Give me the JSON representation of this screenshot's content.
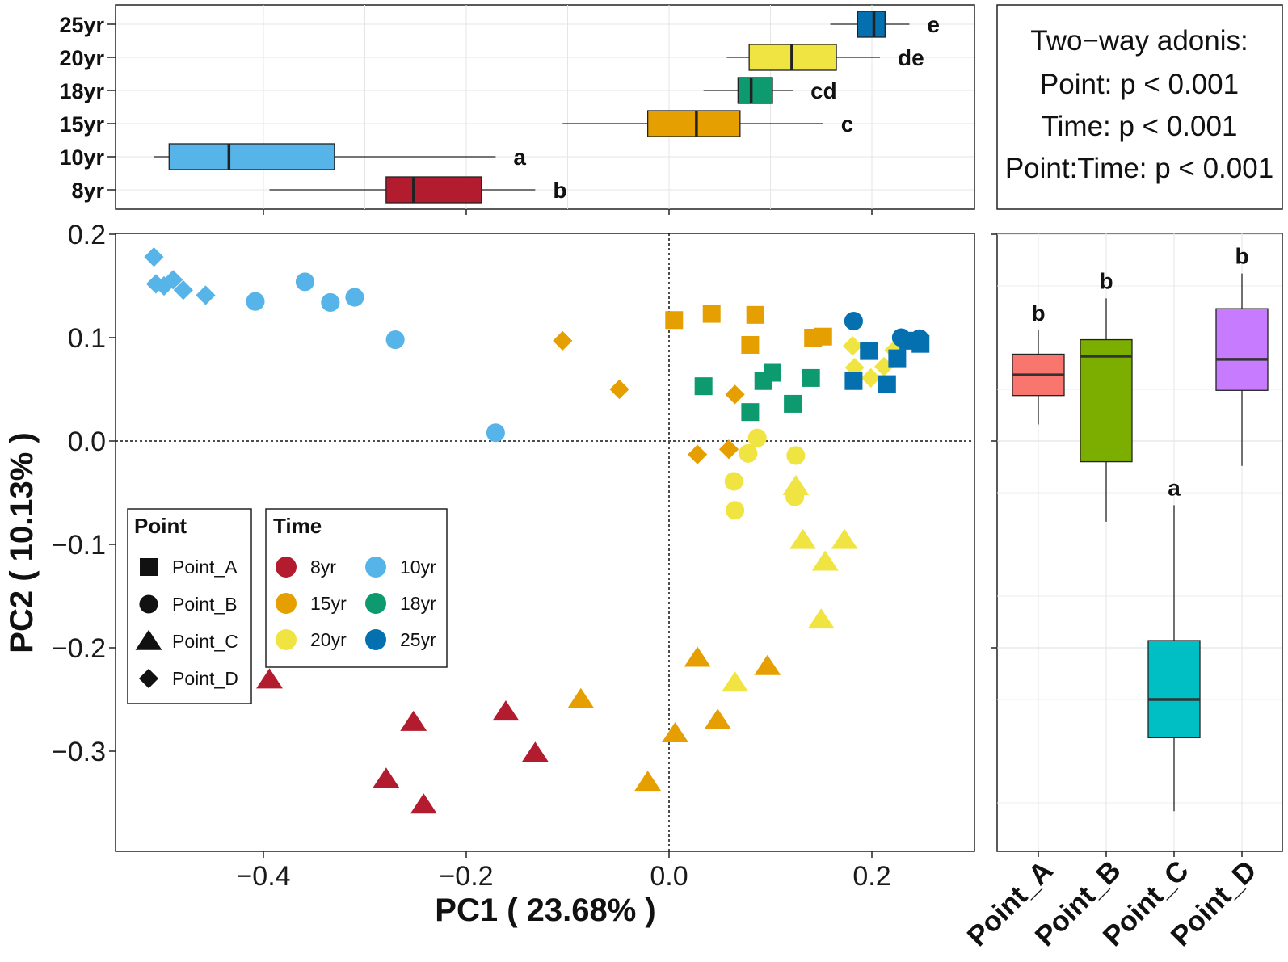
{
  "chart_data": [
    {
      "type": "scatter",
      "name": "PCoA",
      "xlabel": "PC1 ( 23.68% )",
      "ylabel": "PC2 ( 10.13% )",
      "xlim": [
        -0.55,
        0.28
      ],
      "ylim": [
        -0.385,
        0.205
      ],
      "xticks": [
        -0.4,
        -0.2,
        0.0,
        0.2
      ],
      "xtick_labels": [
        "−0.4",
        "−0.2",
        "0.0",
        "0.2"
      ],
      "yticks": [
        0.2,
        0.1,
        0.0,
        -0.1,
        -0.2,
        -0.3
      ],
      "ytick_labels": [
        "0.2",
        "0.1",
        "0.0",
        "−0.1",
        "−0.2",
        "−0.3"
      ],
      "reference_lines": {
        "x": 0.0,
        "y": 0.0,
        "style": "dotted"
      },
      "grid": false,
      "points": [
        {
          "point": "Point_D",
          "time": "10yr",
          "x": -0.508,
          "y": 0.178
        },
        {
          "point": "Point_D",
          "time": "10yr",
          "x": -0.506,
          "y": 0.152
        },
        {
          "point": "Point_D",
          "time": "10yr",
          "x": -0.498,
          "y": 0.15
        },
        {
          "point": "Point_D",
          "time": "10yr",
          "x": -0.489,
          "y": 0.156
        },
        {
          "point": "Point_D",
          "time": "10yr",
          "x": -0.479,
          "y": 0.146
        },
        {
          "point": "Point_D",
          "time": "10yr",
          "x": -0.457,
          "y": 0.141
        },
        {
          "point": "Point_B",
          "time": "10yr",
          "x": -0.408,
          "y": 0.135
        },
        {
          "point": "Point_B",
          "time": "10yr",
          "x": -0.359,
          "y": 0.154
        },
        {
          "point": "Point_B",
          "time": "10yr",
          "x": -0.334,
          "y": 0.134
        },
        {
          "point": "Point_B",
          "time": "10yr",
          "x": -0.31,
          "y": 0.139
        },
        {
          "point": "Point_B",
          "time": "10yr",
          "x": -0.27,
          "y": 0.098
        },
        {
          "point": "Point_B",
          "time": "10yr",
          "x": -0.171,
          "y": 0.008
        },
        {
          "point": "Point_C",
          "time": "8yr",
          "x": -0.394,
          "y": -0.231
        },
        {
          "point": "Point_C",
          "time": "8yr",
          "x": -0.252,
          "y": -0.272
        },
        {
          "point": "Point_C",
          "time": "8yr",
          "x": -0.161,
          "y": -0.262
        },
        {
          "point": "Point_C",
          "time": "8yr",
          "x": -0.132,
          "y": -0.302
        },
        {
          "point": "Point_C",
          "time": "8yr",
          "x": -0.279,
          "y": -0.327
        },
        {
          "point": "Point_C",
          "time": "8yr",
          "x": -0.242,
          "y": -0.352
        },
        {
          "point": "Point_D",
          "time": "15yr",
          "x": -0.105,
          "y": 0.097
        },
        {
          "point": "Point_D",
          "time": "15yr",
          "x": -0.049,
          "y": 0.05
        },
        {
          "point": "Point_D",
          "time": "15yr",
          "x": 0.028,
          "y": -0.013
        },
        {
          "point": "Point_D",
          "time": "15yr",
          "x": 0.059,
          "y": -0.008
        },
        {
          "point": "Point_D",
          "time": "15yr",
          "x": 0.065,
          "y": 0.045
        },
        {
          "point": "Point_A",
          "time": "15yr",
          "x": 0.005,
          "y": 0.117
        },
        {
          "point": "Point_A",
          "time": "15yr",
          "x": 0.042,
          "y": 0.123
        },
        {
          "point": "Point_A",
          "time": "15yr",
          "x": 0.085,
          "y": 0.122
        },
        {
          "point": "Point_A",
          "time": "15yr",
          "x": 0.08,
          "y": 0.093
        },
        {
          "point": "Point_A",
          "time": "15yr",
          "x": 0.142,
          "y": 0.1
        },
        {
          "point": "Point_A",
          "time": "15yr",
          "x": 0.152,
          "y": 0.101
        },
        {
          "point": "Point_C",
          "time": "15yr",
          "x": -0.087,
          "y": -0.25
        },
        {
          "point": "Point_C",
          "time": "15yr",
          "x": 0.028,
          "y": -0.21
        },
        {
          "point": "Point_C",
          "time": "15yr",
          "x": 0.097,
          "y": -0.218
        },
        {
          "point": "Point_C",
          "time": "15yr",
          "x": 0.048,
          "y": -0.27
        },
        {
          "point": "Point_C",
          "time": "15yr",
          "x": 0.006,
          "y": -0.283
        },
        {
          "point": "Point_C",
          "time": "15yr",
          "x": -0.021,
          "y": -0.33
        },
        {
          "point": "Point_A",
          "time": "18yr",
          "x": 0.034,
          "y": 0.053
        },
        {
          "point": "Point_A",
          "time": "18yr",
          "x": 0.093,
          "y": 0.058
        },
        {
          "point": "Point_A",
          "time": "18yr",
          "x": 0.102,
          "y": 0.066
        },
        {
          "point": "Point_A",
          "time": "18yr",
          "x": 0.08,
          "y": 0.028
        },
        {
          "point": "Point_A",
          "time": "18yr",
          "x": 0.122,
          "y": 0.036
        },
        {
          "point": "Point_A",
          "time": "18yr",
          "x": 0.14,
          "y": 0.061
        },
        {
          "point": "Point_B",
          "time": "20yr",
          "x": 0.087,
          "y": 0.003
        },
        {
          "point": "Point_B",
          "time": "20yr",
          "x": 0.078,
          "y": -0.012
        },
        {
          "point": "Point_B",
          "time": "20yr",
          "x": 0.125,
          "y": -0.014
        },
        {
          "point": "Point_B",
          "time": "20yr",
          "x": 0.064,
          "y": -0.039
        },
        {
          "point": "Point_B",
          "time": "20yr",
          "x": 0.124,
          "y": -0.054
        },
        {
          "point": "Point_B",
          "time": "20yr",
          "x": 0.065,
          "y": -0.067
        },
        {
          "point": "Point_C",
          "time": "20yr",
          "x": 0.125,
          "y": -0.044
        },
        {
          "point": "Point_C",
          "time": "20yr",
          "x": 0.132,
          "y": -0.096
        },
        {
          "point": "Point_C",
          "time": "20yr",
          "x": 0.173,
          "y": -0.096
        },
        {
          "point": "Point_C",
          "time": "20yr",
          "x": 0.154,
          "y": -0.117
        },
        {
          "point": "Point_C",
          "time": "20yr",
          "x": 0.15,
          "y": -0.173
        },
        {
          "point": "Point_C",
          "time": "20yr",
          "x": 0.065,
          "y": -0.234
        },
        {
          "point": "Point_D",
          "time": "20yr",
          "x": 0.181,
          "y": 0.092
        },
        {
          "point": "Point_D",
          "time": "20yr",
          "x": 0.183,
          "y": 0.071
        },
        {
          "point": "Point_D",
          "time": "20yr",
          "x": 0.199,
          "y": 0.061
        },
        {
          "point": "Point_D",
          "time": "20yr",
          "x": 0.212,
          "y": 0.072
        },
        {
          "point": "Point_D",
          "time": "20yr",
          "x": 0.222,
          "y": 0.088
        },
        {
          "point": "Point_D",
          "time": "20yr",
          "x": 0.229,
          "y": 0.093
        },
        {
          "point": "Point_A",
          "time": "25yr",
          "x": 0.182,
          "y": 0.058
        },
        {
          "point": "Point_A",
          "time": "25yr",
          "x": 0.197,
          "y": 0.087
        },
        {
          "point": "Point_A",
          "time": "25yr",
          "x": 0.215,
          "y": 0.055
        },
        {
          "point": "Point_A",
          "time": "25yr",
          "x": 0.225,
          "y": 0.08
        },
        {
          "point": "Point_A",
          "time": "25yr",
          "x": 0.236,
          "y": 0.097
        },
        {
          "point": "Point_A",
          "time": "25yr",
          "x": 0.248,
          "y": 0.094
        },
        {
          "point": "Point_B",
          "time": "25yr",
          "x": 0.182,
          "y": 0.116
        },
        {
          "point": "Point_B",
          "time": "25yr",
          "x": 0.229,
          "y": 0.1
        },
        {
          "point": "Point_B",
          "time": "25yr",
          "x": 0.247,
          "y": 0.099
        }
      ],
      "legend_point": {
        "title": "Point",
        "entries": [
          {
            "label": "Point_A",
            "shape": "square"
          },
          {
            "label": "Point_B",
            "shape": "circle"
          },
          {
            "label": "Point_C",
            "shape": "triangle"
          },
          {
            "label": "Point_D",
            "shape": "diamond"
          }
        ]
      },
      "legend_time": {
        "title": "Time",
        "entries": [
          {
            "label": "8yr",
            "color": "#B31B2E"
          },
          {
            "label": "10yr",
            "color": "#56B4E9"
          },
          {
            "label": "15yr",
            "color": "#E69F00"
          },
          {
            "label": "18yr",
            "color": "#0D9A6E"
          },
          {
            "label": "20yr",
            "color": "#F0E442"
          },
          {
            "label": "25yr",
            "color": "#0570B0"
          }
        ]
      }
    },
    {
      "type": "boxplot",
      "name": "PC1 by Time",
      "orientation": "horizontal",
      "axis": "PC1",
      "xlim": [
        -0.55,
        0.28
      ],
      "categories": [
        "25yr",
        "20yr",
        "18yr",
        "15yr",
        "10yr",
        "8yr"
      ],
      "boxes": [
        {
          "label": "25yr",
          "whisker_low": 0.159,
          "q1": 0.186,
          "median": 0.202,
          "q3": 0.213,
          "whisker_high": 0.237,
          "letter": "e",
          "color": "#0570B0"
        },
        {
          "label": "20yr",
          "whisker_low": 0.057,
          "q1": 0.079,
          "median": 0.121,
          "q3": 0.165,
          "whisker_high": 0.208,
          "letter": "de",
          "color": "#F0E442"
        },
        {
          "label": "18yr",
          "whisker_low": 0.034,
          "q1": 0.068,
          "median": 0.081,
          "q3": 0.102,
          "whisker_high": 0.122,
          "letter": "cd",
          "color": "#0D9A6E"
        },
        {
          "label": "15yr",
          "whisker_low": -0.105,
          "q1": -0.021,
          "median": 0.027,
          "q3": 0.07,
          "whisker_high": 0.152,
          "letter": "c",
          "color": "#E69F00"
        },
        {
          "label": "10yr",
          "whisker_low": -0.508,
          "q1": -0.493,
          "median": -0.434,
          "q3": -0.33,
          "whisker_high": -0.171,
          "letter": "a",
          "color": "#56B4E9"
        },
        {
          "label": "8yr",
          "whisker_low": -0.394,
          "q1": -0.279,
          "median": -0.252,
          "q3": -0.185,
          "whisker_high": -0.132,
          "letter": "b",
          "color": "#B31B2E"
        }
      ]
    },
    {
      "type": "boxplot",
      "name": "PC2 by Point",
      "orientation": "vertical",
      "axis": "PC2",
      "ylim": [
        -0.385,
        0.205
      ],
      "categories": [
        "Point_A",
        "Point_B",
        "Point_C",
        "Point_D"
      ],
      "boxes": [
        {
          "label": "Point_A",
          "whisker_low": 0.016,
          "q1": 0.044,
          "median": 0.064,
          "q3": 0.084,
          "whisker_high": 0.107,
          "letter": "b",
          "color": "#F8766D"
        },
        {
          "label": "Point_B",
          "whisker_low": -0.078,
          "q1": -0.02,
          "median": 0.082,
          "q3": 0.098,
          "whisker_high": 0.138,
          "letter": "b",
          "color": "#7CAE00"
        },
        {
          "label": "Point_C",
          "whisker_low": -0.358,
          "q1": -0.287,
          "median": -0.25,
          "q3": -0.193,
          "whisker_high": -0.062,
          "letter": "a",
          "color": "#00BFC4"
        },
        {
          "label": "Point_D",
          "whisker_low": -0.024,
          "q1": 0.049,
          "median": 0.079,
          "q3": 0.128,
          "whisker_high": 0.162,
          "letter": "b",
          "color": "#C77CFF"
        }
      ]
    }
  ],
  "adonis": {
    "title": "Two−way adonis:",
    "line1": "Point: p < 0.001",
    "line2": "Time: p < 0.001",
    "line3": "Point:Time: p < 0.001"
  }
}
